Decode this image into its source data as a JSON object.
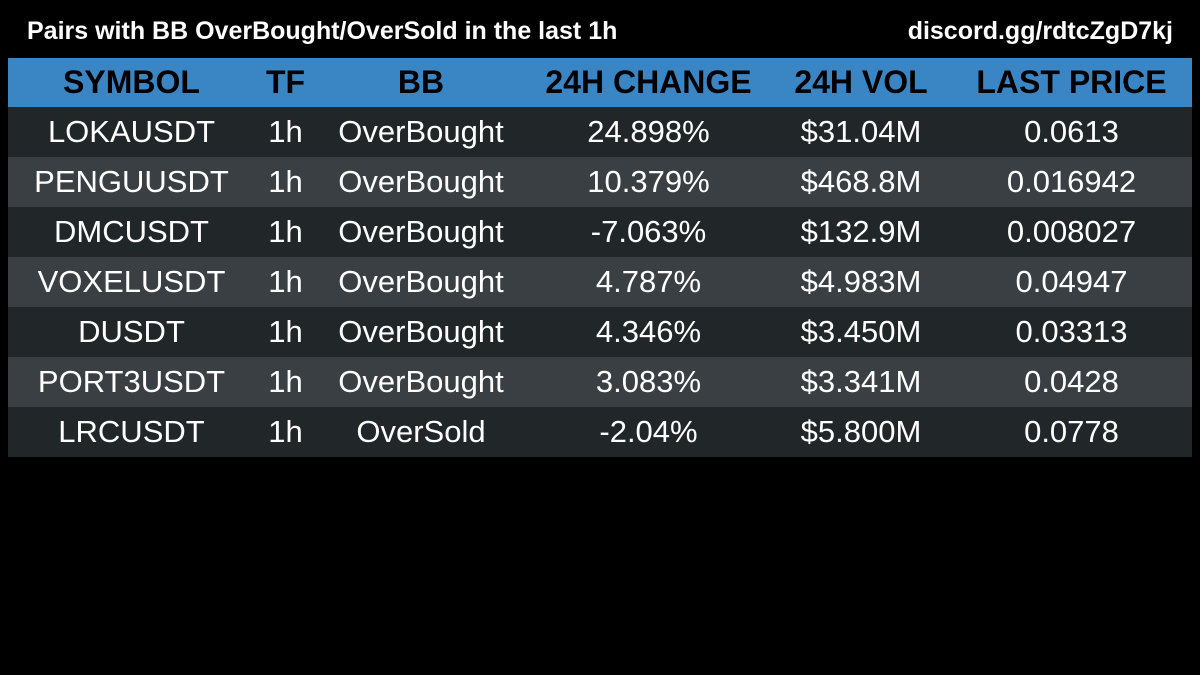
{
  "header": {
    "title": "Pairs with BB OverBought/OverSold in the last 1h",
    "link": "discord.gg/rdtcZgD7kj"
  },
  "colors": {
    "header_row": "#3a86c4",
    "row_dark": "#212629",
    "row_light": "#3a3f44",
    "background": "#000000"
  },
  "chart_data": {
    "type": "table",
    "title": "Pairs with BB OverBought/OverSold in the last 1h",
    "columns": [
      "SYMBOL",
      "TF",
      "BB",
      "24H CHANGE",
      "24H VOL",
      "LAST PRICE"
    ],
    "rows": [
      [
        "LOKAUSDT",
        "1h",
        "OverBought",
        "24.898%",
        "$31.04M",
        "0.0613"
      ],
      [
        "PENGUUSDT",
        "1h",
        "OverBought",
        "10.379%",
        "$468.8M",
        "0.016942"
      ],
      [
        "DMCUSDT",
        "1h",
        "OverBought",
        "-7.063%",
        "$132.9M",
        "0.008027"
      ],
      [
        "VOXELUSDT",
        "1h",
        "OverBought",
        "4.787%",
        "$4.983M",
        "0.04947"
      ],
      [
        "DUSDT",
        "1h",
        "OverBought",
        "4.346%",
        "$3.450M",
        "0.03313"
      ],
      [
        "PORT3USDT",
        "1h",
        "OverBought",
        "3.083%",
        "$3.341M",
        "0.0428"
      ],
      [
        "LRCUSDT",
        "1h",
        "OverSold",
        "-2.04%",
        "$5.800M",
        "0.0778"
      ]
    ]
  }
}
